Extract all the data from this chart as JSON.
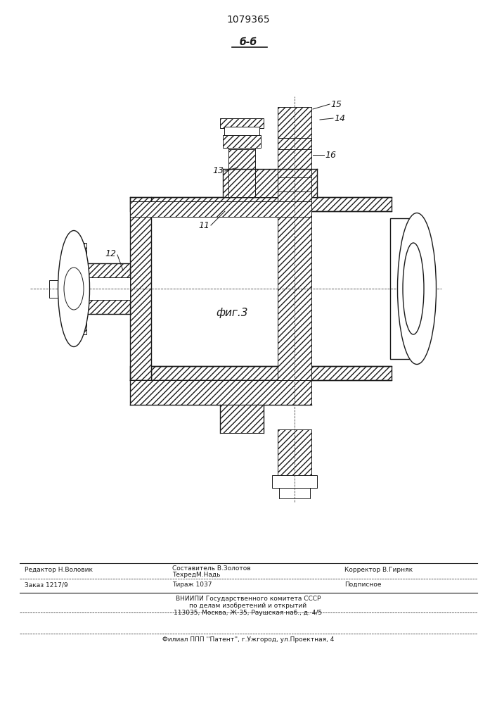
{
  "patent_number": "1079365",
  "section_label": "б-б",
  "figure_label": "фиг.3",
  "bg_color": "#ffffff",
  "line_color": "#1a1a1a",
  "footer_line1_left": "Редактор Н.Воловик",
  "footer_line1_center1": "Составитель В.Золотов",
  "footer_line1_center2": "ТехредМ.Надь",
  "footer_line1_right": "Корректор В.Гирняк",
  "footer_line2_left": "Заказ 1217/9",
  "footer_line2_center": "Тираж 1037",
  "footer_line2_right": "Подписное",
  "footer_line3": "ВНИИПИ Государственного комитета СССР",
  "footer_line4": "по делам изобретений и открытий",
  "footer_line5": "113035, Москва, Ж-35, Раушская наб., д. 4/5",
  "footer_line6": "Филиал ППП ''Патент'', г.Ужгород, ул.Проектная, 4"
}
